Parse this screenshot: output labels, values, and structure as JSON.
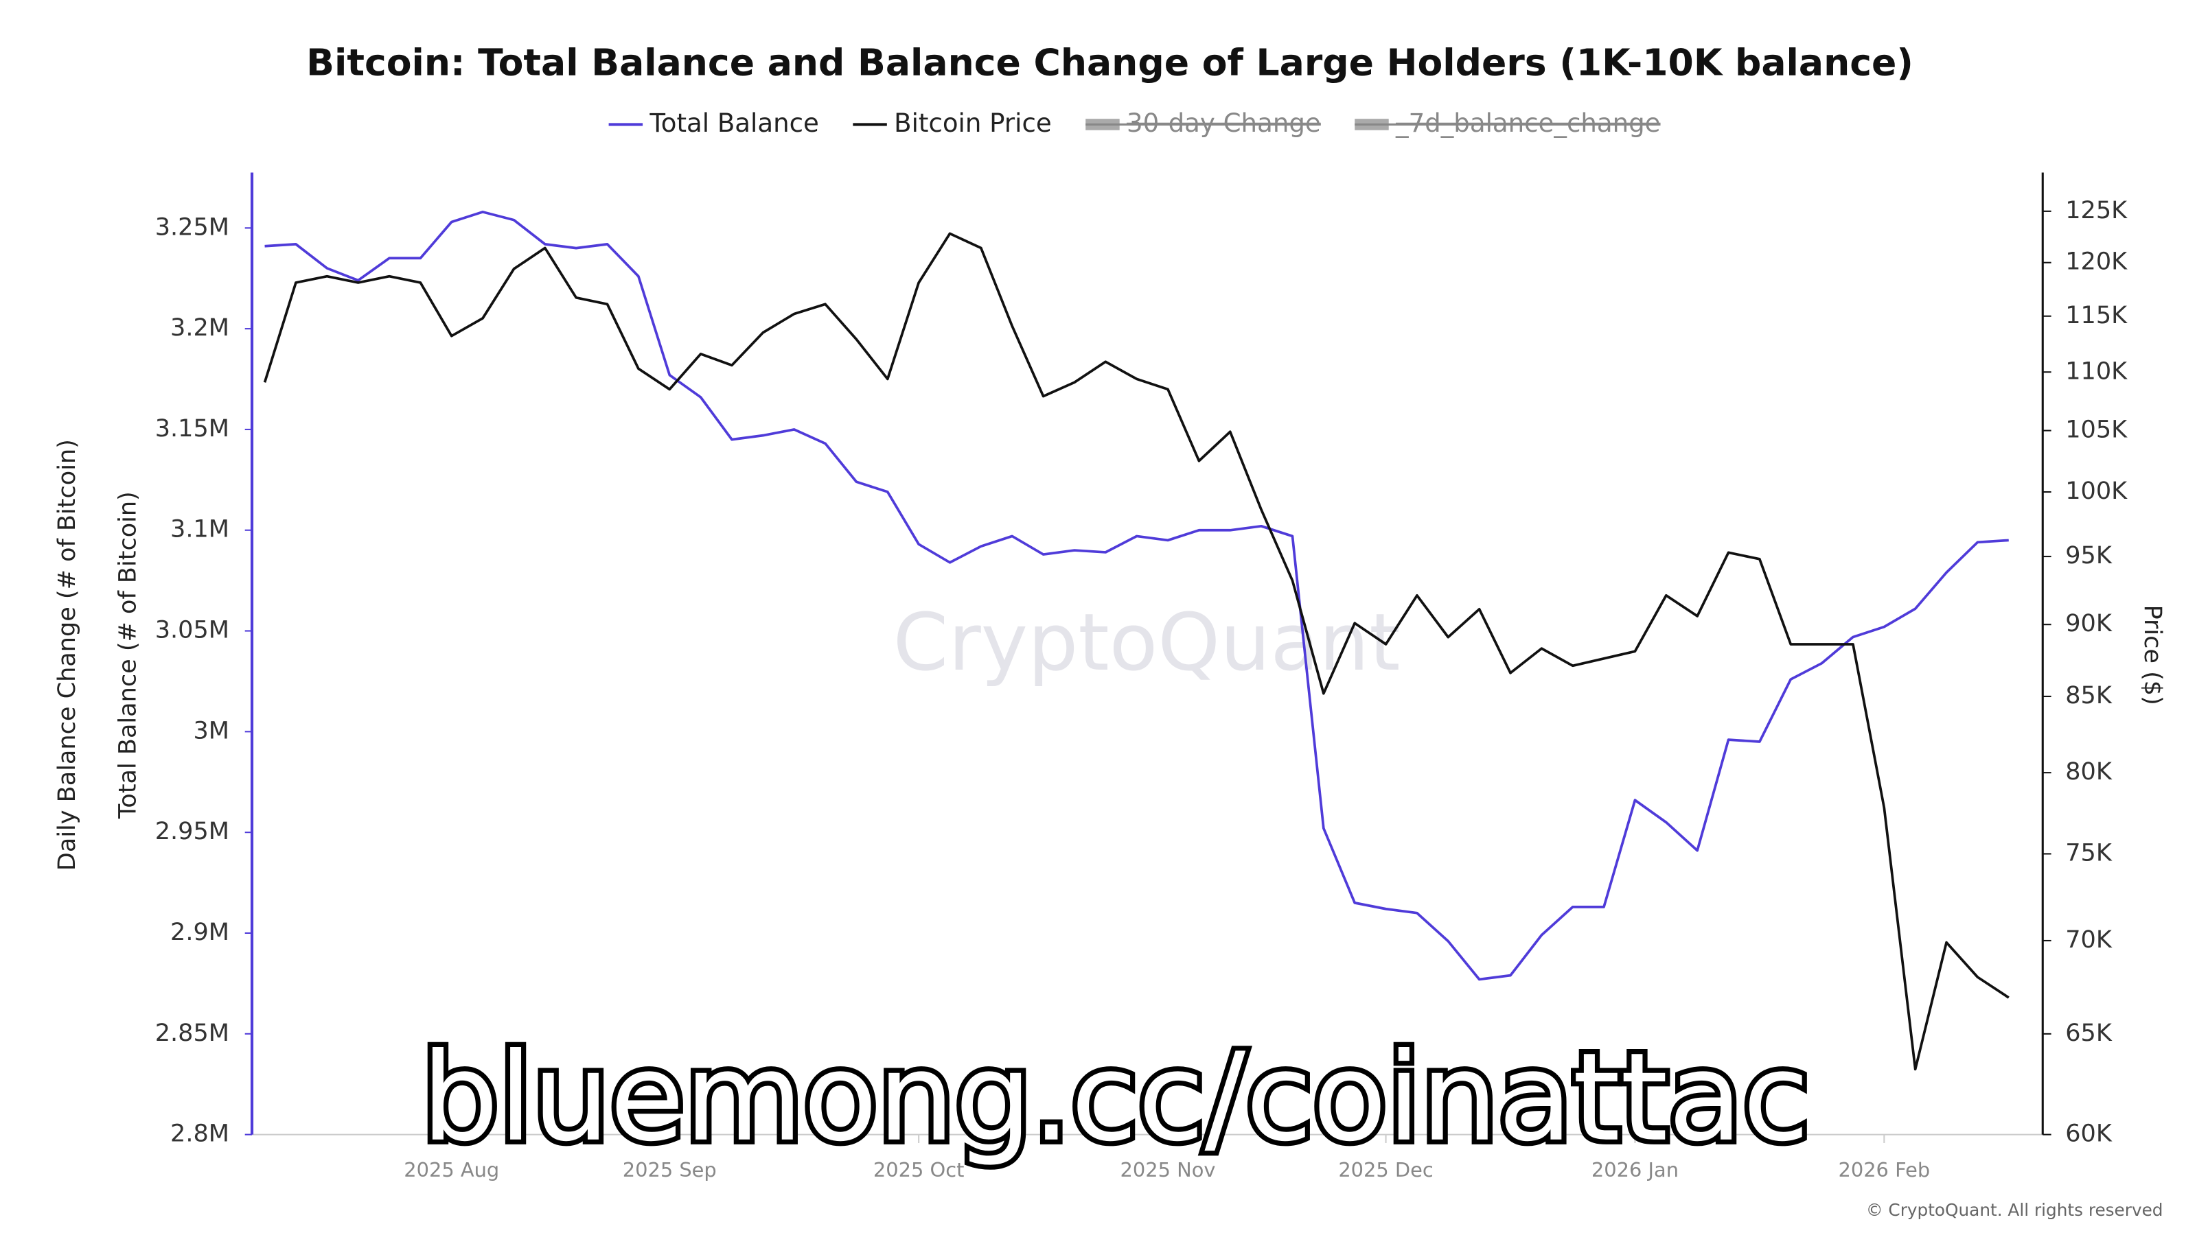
{
  "chart_data": {
    "type": "line",
    "title": "Bitcoin: Total Balance and Balance Change of Large Holders (1K-10K balance)",
    "y_label_outer": "Daily Balance Change (# of Bitcoin)",
    "y_label": "Total Balance (# of Bitcoin)",
    "y2_label": "Price ($)",
    "watermark": "CryptoQuant",
    "footer": "© CryptoQuant. All rights reserved",
    "overlay_text": "bluemong.cc/coinattac",
    "legend_hidden": [
      "30-day Change",
      "_7d_balance_change"
    ],
    "categories": [
      null,
      null,
      null,
      null,
      null,
      null,
      "2025 Aug",
      null,
      null,
      null,
      null,
      null,
      null,
      "2025 Sep",
      null,
      null,
      null,
      null,
      null,
      null,
      null,
      "2025 Oct",
      null,
      null,
      null,
      null,
      null,
      null,
      null,
      "2025 Nov",
      null,
      null,
      null,
      null,
      null,
      null,
      "2025 Dec",
      null,
      null,
      null,
      null,
      null,
      null,
      null,
      "2026 Jan",
      null,
      null,
      null,
      null,
      null,
      null,
      null,
      "2026 Feb",
      null,
      null,
      null,
      null
    ],
    "series": [
      {
        "name": "Total Balance",
        "color": "#4f3bd9",
        "axis": "y",
        "values": [
          3241000,
          3242000,
          3230000,
          3224000,
          3235000,
          3235000,
          3253000,
          3258000,
          3254000,
          3242000,
          3240000,
          3242000,
          3226000,
          3177000,
          3166000,
          3145000,
          3147000,
          3150000,
          3143000,
          3124000,
          3119000,
          3093000,
          3084000,
          3092000,
          3097000,
          3088000,
          3090000,
          3089000,
          3097000,
          3095000,
          3100000,
          3100000,
          3102000,
          3097000,
          2952000,
          2915000,
          2912000,
          2910000,
          2896000,
          2877000,
          2879000,
          2899000,
          2913000,
          2913000,
          2966000,
          2955000,
          2941000,
          2996000,
          2995000,
          3026000,
          3034000,
          3047000,
          3052000,
          3061000,
          3079000,
          3094000,
          3095000
        ]
      },
      {
        "name": "Bitcoin Price",
        "color": "#111111",
        "axis": "y2",
        "values": [
          109100,
          118100,
          118700,
          118100,
          118700,
          118100,
          113200,
          114800,
          119400,
          121400,
          116700,
          116100,
          110300,
          108500,
          111600,
          110600,
          113500,
          115200,
          116100,
          112900,
          109400,
          118100,
          122800,
          121400,
          114100,
          107900,
          109100,
          110900,
          109400,
          108500,
          102500,
          104900,
          98600,
          93200,
          85200,
          90100,
          88600,
          92100,
          89100,
          91100,
          86600,
          88300,
          87100,
          87600,
          88100,
          92100,
          90600,
          95300,
          94800,
          88600,
          88600,
          88600,
          77800,
          63200,
          69900,
          68000,
          66900
        ]
      }
    ],
    "ylim": [
      2800000,
      3277500
    ],
    "yticks": [
      {
        "value": 2800000,
        "label": "2.8M"
      },
      {
        "value": 2850000,
        "label": "2.85M"
      },
      {
        "value": 2900000,
        "label": "2.9M"
      },
      {
        "value": 2950000,
        "label": "2.95M"
      },
      {
        "value": 3000000,
        "label": "3M"
      },
      {
        "value": 3050000,
        "label": "3.05M"
      },
      {
        "value": 3100000,
        "label": "3.1M"
      },
      {
        "value": 3150000,
        "label": "3.15M"
      },
      {
        "value": 3200000,
        "label": "3.2M"
      },
      {
        "value": 3250000,
        "label": "3.25M"
      }
    ],
    "y2lim": [
      60000,
      128900
    ],
    "y2scale": "log",
    "y2ticks": [
      {
        "value": 60000,
        "label": "60K"
      },
      {
        "value": 65000,
        "label": "65K"
      },
      {
        "value": 70000,
        "label": "70K"
      },
      {
        "value": 75000,
        "label": "75K"
      },
      {
        "value": 80000,
        "label": "80K"
      },
      {
        "value": 85000,
        "label": "85K"
      },
      {
        "value": 90000,
        "label": "90K"
      },
      {
        "value": 95000,
        "label": "95K"
      },
      {
        "value": 100000,
        "label": "100K"
      },
      {
        "value": 105000,
        "label": "105K"
      },
      {
        "value": 110000,
        "label": "110K"
      },
      {
        "value": 115000,
        "label": "115K"
      },
      {
        "value": 120000,
        "label": "120K"
      },
      {
        "value": 125000,
        "label": "125K"
      }
    ],
    "grid": false
  }
}
